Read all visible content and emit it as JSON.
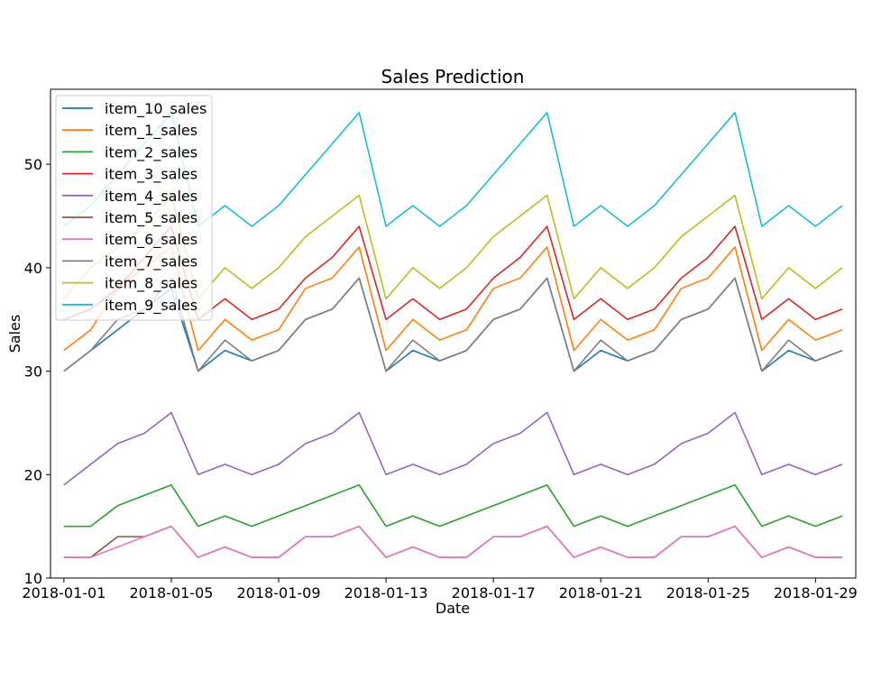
{
  "chart_data": {
    "type": "line",
    "title": "Sales Prediction",
    "xlabel": "Date",
    "ylabel": "Sales",
    "x_start": "2018-01-01",
    "x": [
      "2018-01-01",
      "2018-01-02",
      "2018-01-03",
      "2018-01-04",
      "2018-01-05",
      "2018-01-06",
      "2018-01-07",
      "2018-01-08",
      "2018-01-09",
      "2018-01-10",
      "2018-01-11",
      "2018-01-12",
      "2018-01-13",
      "2018-01-14",
      "2018-01-15",
      "2018-01-16",
      "2018-01-17",
      "2018-01-18",
      "2018-01-19",
      "2018-01-20",
      "2018-01-21",
      "2018-01-22",
      "2018-01-23",
      "2018-01-24",
      "2018-01-25",
      "2018-01-26",
      "2018-01-27",
      "2018-01-28",
      "2018-01-29",
      "2018-01-30"
    ],
    "xlim": [
      "2017-12-31T12:00",
      "2018-01-30T12:00"
    ],
    "ylim": [
      10,
      57.25
    ],
    "x_ticks": [
      "2018-01-01",
      "2018-01-05",
      "2018-01-09",
      "2018-01-13",
      "2018-01-17",
      "2018-01-21",
      "2018-01-25",
      "2018-01-29"
    ],
    "y_ticks": [
      10,
      20,
      30,
      40,
      50
    ],
    "grid": false,
    "legend_position": "upper-left",
    "series": [
      {
        "name": "item_10_sales",
        "color": "#1f77b4",
        "values": [
          30,
          32,
          34,
          36,
          38,
          30,
          32,
          31,
          32,
          35,
          36,
          39,
          30,
          32,
          31,
          32,
          35,
          36,
          39,
          30,
          32,
          31,
          32,
          35,
          36,
          39,
          30,
          32,
          31,
          32
        ]
      },
      {
        "name": "item_1_sales",
        "color": "#ff7f0e",
        "values": [
          32,
          34,
          38,
          40,
          42,
          32,
          35,
          33,
          34,
          38,
          39,
          42,
          32,
          35,
          33,
          34,
          38,
          39,
          42,
          32,
          35,
          33,
          34,
          38,
          39,
          42,
          32,
          35,
          33,
          34
        ]
      },
      {
        "name": "item_2_sales",
        "color": "#2ca02c",
        "values": [
          15,
          15,
          17,
          18,
          19,
          15,
          16,
          15,
          16,
          17,
          18,
          19,
          15,
          16,
          15,
          16,
          17,
          18,
          19,
          15,
          16,
          15,
          16,
          17,
          18,
          19,
          15,
          16,
          15,
          16
        ]
      },
      {
        "name": "item_3_sales",
        "color": "#d62728",
        "values": [
          35,
          36,
          38,
          41,
          44,
          35,
          37,
          35,
          36,
          39,
          41,
          44,
          35,
          37,
          35,
          36,
          39,
          41,
          44,
          35,
          37,
          35,
          36,
          39,
          41,
          44,
          35,
          37,
          35,
          36
        ]
      },
      {
        "name": "item_4_sales",
        "color": "#9467bd",
        "values": [
          19,
          21,
          23,
          24,
          26,
          20,
          21,
          20,
          21,
          23,
          24,
          26,
          20,
          21,
          20,
          21,
          23,
          24,
          26,
          20,
          21,
          20,
          21,
          23,
          24,
          26,
          20,
          21,
          20,
          21
        ]
      },
      {
        "name": "item_5_sales",
        "color": "#8c564b",
        "values": [
          12,
          12,
          14,
          14,
          15,
          12,
          13,
          12,
          12,
          14,
          14,
          15,
          12,
          13,
          12,
          12,
          14,
          14,
          15,
          12,
          13,
          12,
          12,
          14,
          14,
          15,
          12,
          13,
          12,
          12
        ]
      },
      {
        "name": "item_6_sales",
        "color": "#e377c2",
        "values": [
          12,
          12,
          13,
          14,
          15,
          12,
          13,
          12,
          12,
          14,
          14,
          15,
          12,
          13,
          12,
          12,
          14,
          14,
          15,
          12,
          13,
          12,
          12,
          14,
          14,
          15,
          12,
          13,
          12,
          12
        ]
      },
      {
        "name": "item_7_sales",
        "color": "#7f7f7f",
        "values": [
          30,
          32,
          35,
          36,
          39,
          30,
          33,
          31,
          32,
          35,
          36,
          39,
          30,
          33,
          31,
          32,
          35,
          36,
          39,
          30,
          33,
          31,
          32,
          35,
          36,
          39,
          30,
          33,
          31,
          32
        ]
      },
      {
        "name": "item_8_sales",
        "color": "#bcbd22",
        "values": [
          37,
          40,
          42,
          44,
          47,
          37,
          40,
          38,
          40,
          43,
          45,
          47,
          37,
          40,
          38,
          40,
          43,
          45,
          47,
          37,
          40,
          38,
          40,
          43,
          45,
          47,
          37,
          40,
          38,
          40
        ]
      },
      {
        "name": "item_9_sales",
        "color": "#17becf",
        "values": [
          44,
          46,
          49,
          52,
          55,
          44,
          46,
          44,
          46,
          49,
          52,
          55,
          44,
          46,
          44,
          46,
          49,
          52,
          55,
          44,
          46,
          44,
          46,
          49,
          52,
          55,
          44,
          46,
          44,
          46
        ]
      }
    ]
  }
}
